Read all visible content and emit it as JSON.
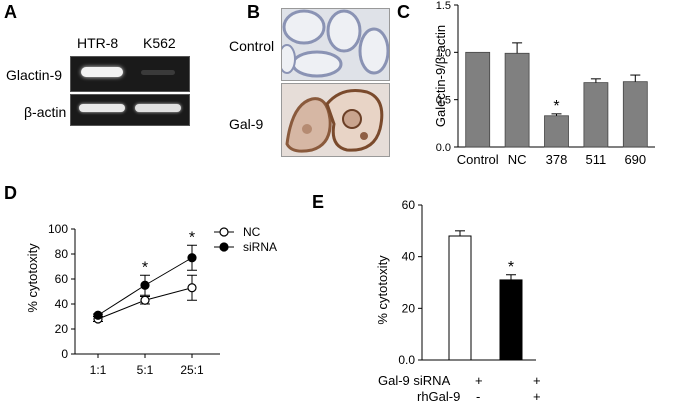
{
  "panel_a": {
    "label": "A",
    "lanes": [
      "HTR-8",
      "K562"
    ],
    "rows": [
      "Glactin-9",
      "β-actin"
    ]
  },
  "panel_b": {
    "label": "B",
    "rows": [
      "Control",
      "Gal-9"
    ]
  },
  "panel_e_conditions": {
    "row1_label": "Gal-9 siRNA",
    "row1_values": [
      "+",
      "+"
    ],
    "row2_label": "rhGal-9",
    "row2_values": [
      "-",
      "+"
    ]
  },
  "chart_data": [
    {
      "panel": "C",
      "type": "bar",
      "categories": [
        "Control",
        "NC",
        "378",
        "511",
        "690"
      ],
      "values": [
        1.0,
        0.99,
        0.33,
        0.68,
        0.69
      ],
      "errors": [
        0.0,
        0.11,
        0.02,
        0.04,
        0.07
      ],
      "significance": [
        "",
        "",
        "*",
        "",
        ""
      ],
      "ylabel": "Galectin-9/β-actin",
      "ylim": [
        0,
        1.5
      ],
      "yticks": [
        "0.0",
        "0.5",
        "1.0",
        "1.5"
      ],
      "bar_color": "#808080"
    },
    {
      "panel": "D",
      "type": "line",
      "categories": [
        "1:1",
        "5:1",
        "25:1"
      ],
      "series": [
        {
          "name": "NC",
          "values": [
            28,
            43,
            53
          ],
          "errors": [
            2,
            3,
            10
          ],
          "marker": "open"
        },
        {
          "name": "siRNA",
          "values": [
            31,
            55,
            77
          ],
          "errors": [
            1,
            8,
            10
          ],
          "marker": "filled"
        }
      ],
      "significance": [
        "",
        "*",
        "*"
      ],
      "ylabel": "% cytotoxity",
      "ylim": [
        0,
        100
      ],
      "yticks": [
        "0",
        "20",
        "40",
        "60",
        "80",
        "100"
      ],
      "legend": "top-right"
    },
    {
      "panel": "E",
      "type": "bar",
      "values": [
        48,
        31
      ],
      "errors": [
        2,
        2
      ],
      "fills": [
        "#ffffff",
        "#000000"
      ],
      "significance": [
        "",
        "*"
      ],
      "ylabel": "% cytotoxity",
      "ylim": [
        0,
        60
      ],
      "yticks": [
        "0.0",
        "20",
        "40",
        "60"
      ]
    }
  ]
}
